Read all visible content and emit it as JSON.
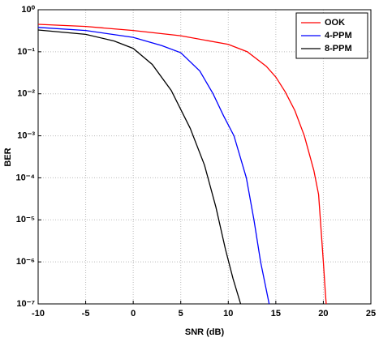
{
  "chart_data": {
    "type": "line",
    "xlabel": "SNR (dB)",
    "ylabel": "BER",
    "xlim": [
      -10,
      25
    ],
    "xticks": [
      -10,
      -5,
      0,
      5,
      10,
      15,
      20,
      25
    ],
    "ylim": [
      1e-07,
      1
    ],
    "log_y": true,
    "grid": true,
    "legend": "upper right",
    "yticks": [
      {
        "value": 1e-07,
        "label": "10⁻⁷"
      },
      {
        "value": 1e-06,
        "label": "10⁻⁶"
      },
      {
        "value": 1e-05,
        "label": "10⁻⁵"
      },
      {
        "value": 0.0001,
        "label": "10⁻⁴"
      },
      {
        "value": 0.001,
        "label": "10⁻³"
      },
      {
        "value": 0.01,
        "label": "10⁻²"
      },
      {
        "value": 0.1,
        "label": "10⁻¹"
      },
      {
        "value": 1,
        "label": "10⁰"
      }
    ],
    "series": [
      {
        "name": "OOK",
        "color": "#ff0000",
        "x": [
          -10,
          -5,
          0,
          5,
          10,
          12,
          14,
          15,
          16,
          17,
          18,
          19,
          19.5,
          20,
          20.2,
          20.3
        ],
        "values": [
          0.45,
          0.4,
          0.32,
          0.24,
          0.15,
          0.1,
          0.045,
          0.025,
          0.011,
          0.004,
          0.001,
          0.00015,
          4e-05,
          1e-06,
          2e-07,
          1e-07
        ]
      },
      {
        "name": "4-PPM",
        "color": "#0000ff",
        "x": [
          -10,
          -5,
          0,
          3,
          5,
          7,
          8.4,
          9.5,
          10.6,
          11.9,
          12.7,
          13.4,
          14.3
        ],
        "values": [
          0.38,
          0.32,
          0.22,
          0.14,
          0.095,
          0.035,
          0.01,
          0.003,
          0.001,
          0.0001,
          1e-05,
          1e-06,
          1e-07
        ]
      },
      {
        "name": "8-PPM",
        "color": "#000000",
        "x": [
          -10,
          -5,
          -2,
          0,
          2,
          4,
          6,
          7.5,
          8.7,
          9.7,
          10.5,
          11.3
        ],
        "values": [
          0.33,
          0.26,
          0.18,
          0.12,
          0.05,
          0.012,
          0.0015,
          0.0002,
          2e-05,
          2e-06,
          4e-07,
          1e-07
        ]
      }
    ]
  }
}
